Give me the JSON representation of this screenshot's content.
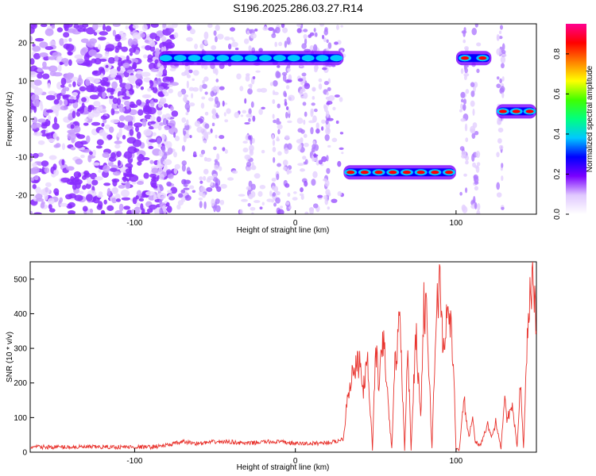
{
  "title": "S196.2025.286.03.27.R14",
  "chart_data": [
    {
      "type": "heatmap",
      "xlabel": "Height of straight line (km)",
      "ylabel": "Frequency (Hz)",
      "xlim": [
        -165,
        150
      ],
      "ylim": [
        -25,
        25
      ],
      "xticks": [
        -100,
        0,
        100
      ],
      "yticks": [
        -20,
        -10,
        0,
        10,
        20
      ],
      "colorbar": {
        "label": "Normalized spectral amplitude",
        "range": [
          0,
          0.95
        ],
        "ticks": [
          0.0,
          0.2,
          0.4,
          0.6,
          0.8
        ],
        "colors": [
          "#ffffff",
          "#e0c8ff",
          "#7a00ff",
          "#0000ff",
          "#00c8ff",
          "#00ff80",
          "#40ff00",
          "#ffff00",
          "#ff8000",
          "#ff0000",
          "#ff0090"
        ]
      },
      "bands": [
        {
          "x": [
            -85,
            30
          ],
          "freq": 16,
          "peak": 0.35
        },
        {
          "x": [
            30,
            100
          ],
          "freq": -14,
          "peak": 0.85
        },
        {
          "x": [
            100,
            122
          ],
          "freq": 16,
          "peak": 0.8
        },
        {
          "x": [
            125,
            150
          ],
          "freq": 2,
          "peak": 0.85
        }
      ],
      "noise_region": [
        -165,
        -85
      ],
      "grid": false
    },
    {
      "type": "line",
      "xlabel": "Height of straight line (km)",
      "ylabel": "SNR (10 * v/v)",
      "xlim": [
        -165,
        150
      ],
      "ylim": [
        0,
        550
      ],
      "xticks": [
        -100,
        0,
        100
      ],
      "yticks": [
        0,
        100,
        200,
        300,
        400,
        500
      ],
      "color": "#e8322c",
      "series": [
        {
          "x": [
            -165,
            -150,
            -130,
            -110,
            -90,
            -80,
            -70,
            -60,
            -50,
            -40,
            -30,
            -20,
            -10,
            0,
            10,
            20,
            25,
            30,
            32,
            35,
            40,
            42,
            45,
            48,
            50,
            52,
            55,
            58,
            60,
            62,
            65,
            68,
            70,
            72,
            75,
            78,
            80,
            82,
            85,
            88,
            90,
            92,
            95,
            98,
            100,
            102,
            105,
            108,
            110,
            112,
            115,
            118,
            120,
            122,
            125,
            128,
            130,
            132,
            135,
            138,
            140,
            142,
            145,
            148,
            150
          ],
          "y": [
            15,
            15,
            15,
            15,
            15,
            20,
            30,
            25,
            30,
            30,
            25,
            30,
            30,
            25,
            25,
            28,
            30,
            40,
            150,
            220,
            260,
            180,
            250,
            10,
            300,
            200,
            330,
            120,
            10,
            250,
            380,
            10,
            300,
            10,
            350,
            100,
            420,
            380,
            10,
            440,
            480,
            300,
            420,
            300,
            5,
            10,
            150,
            40,
            100,
            30,
            20,
            60,
            80,
            40,
            90,
            10,
            150,
            90,
            150,
            10,
            200,
            10,
            400,
            520,
            350
          ]
        }
      ]
    }
  ]
}
